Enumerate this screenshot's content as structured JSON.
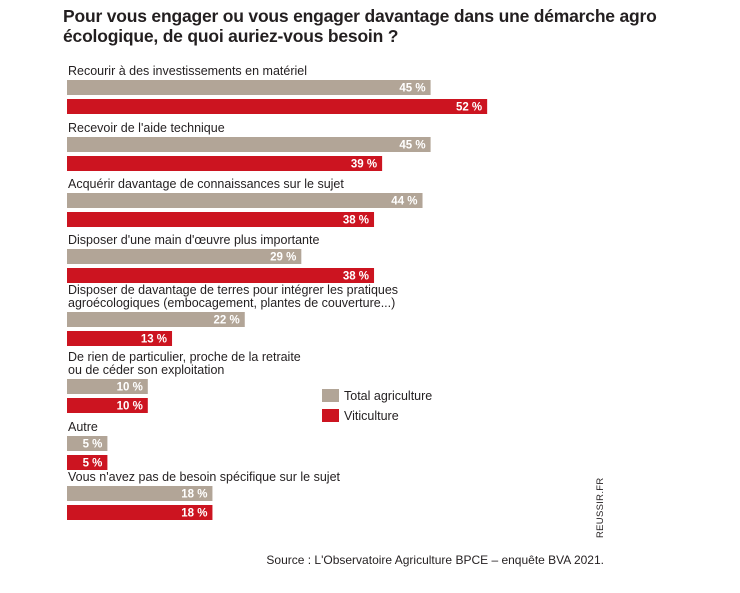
{
  "chart_data": {
    "type": "bar",
    "orientation": "horizontal",
    "title": "Pour vous engager ou vous engager davantage dans une démarche agro écologique, de quoi auriez-vous besoin ?",
    "categories": [
      [
        "Recourir à des investissements en matériel"
      ],
      [
        "Recevoir de l'aide technique"
      ],
      [
        "Acquérir davantage de connaissances sur le sujet"
      ],
      [
        "Disposer d'une main d'œuvre plus importante"
      ],
      [
        "Disposer de davantage de terres pour intégrer les pratiques",
        "agroécologiques (embocagement, plantes de couverture...)"
      ],
      [
        "De rien de particulier, proche de la retraite",
        "ou de céder son exploitation"
      ],
      [
        "Autre"
      ],
      [
        "Vous n'avez pas de besoin spécifique sur le sujet"
      ]
    ],
    "series": [
      {
        "name": "Total agriculture",
        "color": "#b2a597",
        "values": [
          45,
          45,
          44,
          29,
          22,
          10,
          5,
          18
        ]
      },
      {
        "name": "Viticulture",
        "color": "#cc1420",
        "values": [
          52,
          39,
          38,
          38,
          13,
          10,
          5,
          18
        ]
      }
    ],
    "value_suffix": " %",
    "legend": {
      "position": "middle-right"
    },
    "grid": false
  },
  "source": "Source : L'Observatoire Agriculture BPCE – enquête BVA 2021.",
  "credit": "REUSSIR.FR"
}
